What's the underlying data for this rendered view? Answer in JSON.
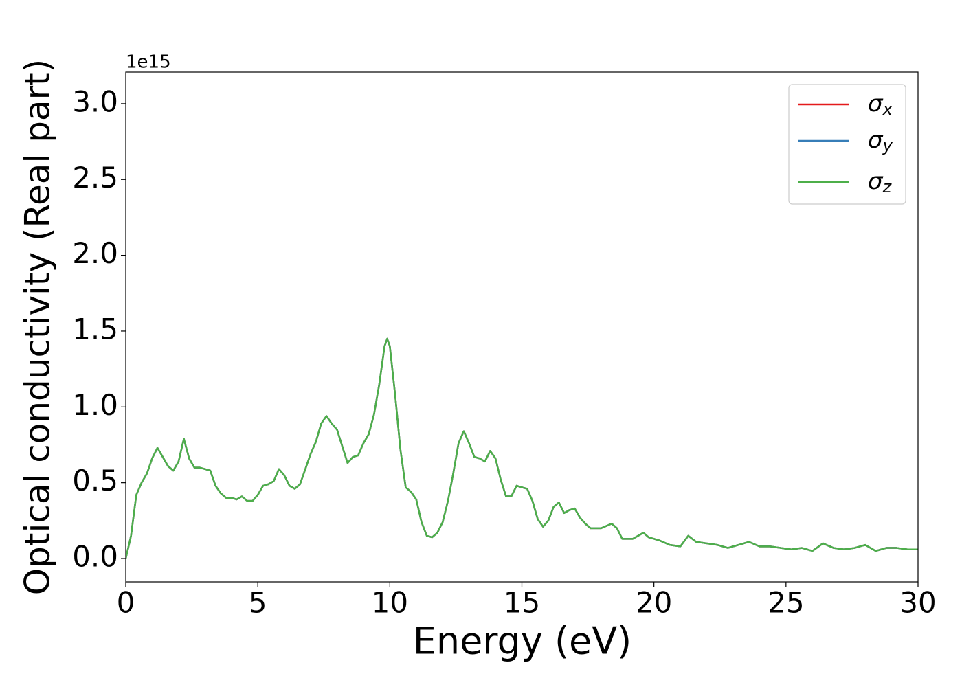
{
  "chart_data": {
    "type": "line",
    "xlabel": "Energy (eV)",
    "ylabel": "Optical conductivity (Real part)",
    "y_offset_label": "1e15",
    "x": [
      0,
      0.2,
      0.4,
      0.6,
      0.8,
      1.0,
      1.2,
      1.4,
      1.6,
      1.8,
      2.0,
      2.2,
      2.4,
      2.6,
      2.8,
      3.0,
      3.2,
      3.4,
      3.6,
      3.8,
      4.0,
      4.2,
      4.4,
      4.6,
      4.8,
      5.0,
      5.2,
      5.4,
      5.6,
      5.8,
      6.0,
      6.2,
      6.4,
      6.6,
      6.8,
      7.0,
      7.2,
      7.4,
      7.6,
      7.8,
      8.0,
      8.2,
      8.4,
      8.6,
      8.8,
      9.0,
      9.2,
      9.4,
      9.6,
      9.8,
      9.9,
      10.0,
      10.2,
      10.4,
      10.6,
      10.8,
      11.0,
      11.2,
      11.4,
      11.6,
      11.8,
      12.0,
      12.2,
      12.4,
      12.6,
      12.8,
      13.0,
      13.2,
      13.4,
      13.6,
      13.8,
      14.0,
      14.2,
      14.4,
      14.6,
      14.8,
      15.0,
      15.2,
      15.4,
      15.6,
      15.8,
      16.0,
      16.2,
      16.4,
      16.6,
      16.8,
      17.0,
      17.2,
      17.4,
      17.6,
      18.0,
      18.4,
      18.6,
      18.8,
      19.2,
      19.6,
      19.8,
      20.2,
      20.6,
      21.0,
      21.3,
      21.6,
      22.0,
      22.4,
      22.8,
      23.2,
      23.6,
      24.0,
      24.4,
      24.8,
      25.2,
      25.6,
      26.0,
      26.4,
      26.8,
      27.2,
      27.6,
      28.0,
      28.4,
      28.8,
      29.2,
      29.6,
      30.0
    ],
    "series": [
      {
        "name": "σx",
        "color": "#e41a1c",
        "values": [
          0.0,
          0.15,
          0.42,
          0.5,
          0.56,
          0.66,
          0.73,
          0.67,
          0.61,
          0.58,
          0.64,
          0.79,
          0.66,
          0.6,
          0.6,
          0.59,
          0.58,
          0.48,
          0.43,
          0.4,
          0.4,
          0.39,
          0.41,
          0.38,
          0.38,
          0.42,
          0.48,
          0.49,
          0.51,
          0.59,
          0.55,
          0.48,
          0.46,
          0.49,
          0.59,
          0.69,
          0.77,
          0.89,
          0.94,
          0.89,
          0.85,
          0.74,
          0.63,
          0.67,
          0.68,
          0.76,
          0.82,
          0.95,
          1.15,
          1.4,
          1.45,
          1.4,
          1.08,
          0.72,
          0.47,
          0.44,
          0.39,
          0.24,
          0.15,
          0.14,
          0.17,
          0.24,
          0.38,
          0.56,
          0.76,
          0.84,
          0.76,
          0.67,
          0.66,
          0.64,
          0.71,
          0.66,
          0.52,
          0.41,
          0.41,
          0.48,
          0.47,
          0.46,
          0.38,
          0.26,
          0.21,
          0.25,
          0.34,
          0.37,
          0.3,
          0.32,
          0.33,
          0.27,
          0.23,
          0.2,
          0.2,
          0.23,
          0.2,
          0.13,
          0.13,
          0.17,
          0.14,
          0.12,
          0.09,
          0.08,
          0.15,
          0.11,
          0.1,
          0.09,
          0.07,
          0.09,
          0.11,
          0.08,
          0.08,
          0.07,
          0.06,
          0.07,
          0.05,
          0.1,
          0.07,
          0.06,
          0.07,
          0.09,
          0.05,
          0.07,
          0.07,
          0.06,
          0.06
        ]
      },
      {
        "name": "σy",
        "color": "#377eb8",
        "values": [
          0.0,
          0.15,
          0.42,
          0.5,
          0.56,
          0.66,
          0.73,
          0.67,
          0.61,
          0.58,
          0.64,
          0.79,
          0.66,
          0.6,
          0.6,
          0.59,
          0.58,
          0.48,
          0.43,
          0.4,
          0.4,
          0.39,
          0.41,
          0.38,
          0.38,
          0.42,
          0.48,
          0.49,
          0.51,
          0.59,
          0.55,
          0.48,
          0.46,
          0.49,
          0.59,
          0.69,
          0.77,
          0.89,
          0.94,
          0.89,
          0.85,
          0.74,
          0.63,
          0.67,
          0.68,
          0.76,
          0.82,
          0.95,
          1.15,
          1.4,
          1.45,
          1.4,
          1.08,
          0.72,
          0.47,
          0.44,
          0.39,
          0.24,
          0.15,
          0.14,
          0.17,
          0.24,
          0.38,
          0.56,
          0.76,
          0.84,
          0.76,
          0.67,
          0.66,
          0.64,
          0.71,
          0.66,
          0.52,
          0.41,
          0.41,
          0.48,
          0.47,
          0.46,
          0.38,
          0.26,
          0.21,
          0.25,
          0.34,
          0.37,
          0.3,
          0.32,
          0.33,
          0.27,
          0.23,
          0.2,
          0.2,
          0.23,
          0.2,
          0.13,
          0.13,
          0.17,
          0.14,
          0.12,
          0.09,
          0.08,
          0.15,
          0.11,
          0.1,
          0.09,
          0.07,
          0.09,
          0.11,
          0.08,
          0.08,
          0.07,
          0.06,
          0.07,
          0.05,
          0.1,
          0.07,
          0.06,
          0.07,
          0.09,
          0.05,
          0.07,
          0.07,
          0.06,
          0.06
        ]
      },
      {
        "name": "σz",
        "color": "#4daf4a",
        "values": [
          0.0,
          0.15,
          0.42,
          0.5,
          0.56,
          0.66,
          0.73,
          0.67,
          0.61,
          0.58,
          0.64,
          0.79,
          0.66,
          0.6,
          0.6,
          0.59,
          0.58,
          0.48,
          0.43,
          0.4,
          0.4,
          0.39,
          0.41,
          0.38,
          0.38,
          0.42,
          0.48,
          0.49,
          0.51,
          0.59,
          0.55,
          0.48,
          0.46,
          0.49,
          0.59,
          0.69,
          0.77,
          0.89,
          0.94,
          0.89,
          0.85,
          0.74,
          0.63,
          0.67,
          0.68,
          0.76,
          0.82,
          0.95,
          1.15,
          1.4,
          1.45,
          1.4,
          1.08,
          0.72,
          0.47,
          0.44,
          0.39,
          0.24,
          0.15,
          0.14,
          0.17,
          0.24,
          0.38,
          0.56,
          0.76,
          0.84,
          0.76,
          0.67,
          0.66,
          0.64,
          0.71,
          0.66,
          0.52,
          0.41,
          0.41,
          0.48,
          0.47,
          0.46,
          0.38,
          0.26,
          0.21,
          0.25,
          0.34,
          0.37,
          0.3,
          0.32,
          0.33,
          0.27,
          0.23,
          0.2,
          0.2,
          0.23,
          0.2,
          0.13,
          0.13,
          0.17,
          0.14,
          0.12,
          0.09,
          0.08,
          0.15,
          0.11,
          0.1,
          0.09,
          0.07,
          0.09,
          0.11,
          0.08,
          0.08,
          0.07,
          0.06,
          0.07,
          0.05,
          0.1,
          0.07,
          0.06,
          0.07,
          0.09,
          0.05,
          0.07,
          0.07,
          0.06,
          0.06
        ]
      }
    ],
    "xlim": [
      0,
      30
    ],
    "xticks": [
      0,
      5,
      10,
      15,
      20,
      25,
      30
    ],
    "ylim": [
      -0.154,
      3.208
    ],
    "yticks": [
      {
        "value": 0,
        "label": "0.0"
      },
      0.5,
      {
        "value": 1,
        "label": "1.0"
      },
      1.5,
      {
        "value": 2,
        "label": "2.0"
      },
      2.5,
      {
        "value": 3,
        "label": "3.0"
      }
    ],
    "grid": false,
    "legend": "upper right"
  }
}
